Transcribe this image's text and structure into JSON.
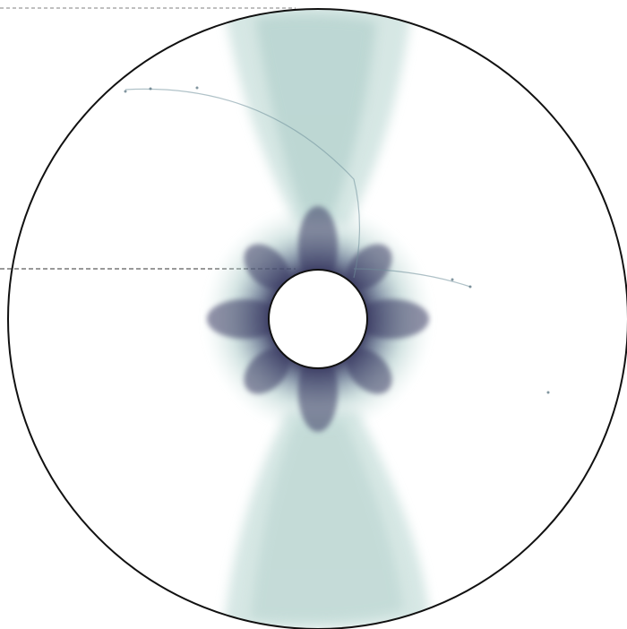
{
  "figure": {
    "description_free": true,
    "colors": {
      "background": "#ffffff",
      "outer_ring": "#111111",
      "guide_lines": "#555555",
      "density_light": "#cfe3e0",
      "density_mid": "#8fb8b5",
      "density_dark": "#3a3a60",
      "inner_hole": "#ffffff"
    }
  }
}
